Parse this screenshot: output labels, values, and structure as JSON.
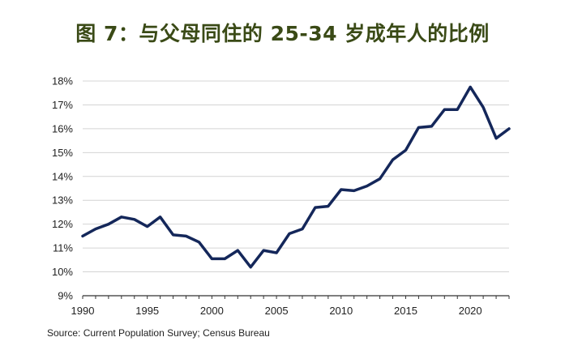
{
  "chart_data": {
    "type": "line",
    "title": "图 7：与父母同住的 25-34 岁成年人的比例",
    "source": "Source: Current Population Survey; Census Bureau",
    "xlabel": "",
    "ylabel": "",
    "xlim": [
      1990,
      2023
    ],
    "ylim": [
      9,
      18
    ],
    "x_ticks": [
      1990,
      1995,
      2000,
      2005,
      2010,
      2015,
      2020
    ],
    "y_ticks": [
      "9%",
      "10%",
      "11%",
      "12%",
      "13%",
      "14%",
      "15%",
      "16%",
      "17%",
      "18%"
    ],
    "grid": true,
    "color": "#14275a",
    "series": [
      {
        "name": "Share of 25-34 year-olds living with parents",
        "x": [
          1990,
          1991,
          1992,
          1993,
          1994,
          1995,
          1996,
          1997,
          1998,
          1999,
          2000,
          2001,
          2002,
          2003,
          2004,
          2005,
          2006,
          2007,
          2008,
          2009,
          2010,
          2011,
          2012,
          2013,
          2014,
          2015,
          2016,
          2017,
          2018,
          2019,
          2020,
          2021,
          2022,
          2023
        ],
        "values": [
          11.5,
          11.8,
          12.0,
          12.3,
          12.2,
          11.9,
          12.3,
          11.55,
          11.5,
          11.25,
          10.55,
          10.55,
          10.9,
          10.2,
          10.9,
          10.8,
          11.6,
          11.8,
          12.7,
          12.75,
          13.45,
          13.4,
          13.6,
          13.9,
          14.7,
          15.1,
          16.05,
          16.1,
          16.8,
          16.8,
          17.75,
          16.9,
          15.6,
          16.0
        ]
      }
    ]
  }
}
